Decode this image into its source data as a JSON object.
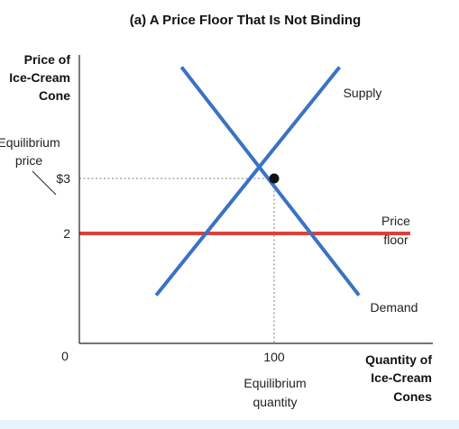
{
  "chart_data": {
    "type": "line",
    "title": "(a) A Price Floor That Is Not Binding",
    "ylabel": [
      "Price of",
      "Ice-Cream",
      "Cone"
    ],
    "xlabel": [
      "Quantity of",
      "Ice-Cream",
      "Cones"
    ],
    "xlim": [
      0,
      200
    ],
    "ylim": [
      0,
      5
    ],
    "grid": false,
    "origin_label": "0",
    "y_ticks": [
      {
        "value": 3,
        "label": "$3"
      },
      {
        "value": 2,
        "label": "2"
      }
    ],
    "x_ticks": [
      {
        "value": 100,
        "label": "100"
      }
    ],
    "series": [
      {
        "name": "Supply",
        "color": "#3a73c2",
        "x": [
          40,
          133
        ],
        "y": [
          0.9,
          5.0
        ]
      },
      {
        "name": "Demand",
        "color": "#3a73c2",
        "x": [
          53,
          143
        ],
        "y": [
          5.0,
          0.9
        ]
      }
    ],
    "price_floor": {
      "value": 2,
      "label_lines": [
        "Price",
        "floor"
      ],
      "color": "#e0403a"
    },
    "equilibrium": {
      "x": 100,
      "y": 3,
      "color": "#111111"
    },
    "annotations": {
      "equilibrium_price": [
        "Equilibrium",
        "price"
      ],
      "equilibrium_quantity": [
        "Equilibrium",
        "quantity"
      ]
    },
    "guide_color": "#999999"
  }
}
